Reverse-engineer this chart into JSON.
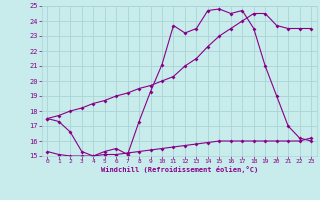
{
  "xlabel": "Windchill (Refroidissement éolien,°C)",
  "bg_color": "#c8ecec",
  "grid_color": "#aad4d4",
  "line_color": "#880088",
  "x_ticks": [
    0,
    1,
    2,
    3,
    4,
    5,
    6,
    7,
    8,
    9,
    10,
    11,
    12,
    13,
    14,
    15,
    16,
    17,
    18,
    19,
    20,
    21,
    22,
    23
  ],
  "y_ticks": [
    15,
    16,
    17,
    18,
    19,
    20,
    21,
    22,
    23,
    24,
    25
  ],
  "xlim": [
    -0.5,
    23.5
  ],
  "ylim": [
    15,
    25
  ],
  "line1_x": [
    0,
    1,
    2,
    3,
    4,
    5,
    6,
    7,
    8,
    9,
    10,
    11,
    12,
    13,
    14,
    15,
    16,
    17,
    18,
    19,
    20,
    21,
    22,
    23
  ],
  "line1_y": [
    17.5,
    17.3,
    16.6,
    15.3,
    15.0,
    15.3,
    15.5,
    15.1,
    17.3,
    19.3,
    21.1,
    23.7,
    23.2,
    23.5,
    24.7,
    24.8,
    24.5,
    24.7,
    23.5,
    21.0,
    19.0,
    17.0,
    16.2,
    16.0
  ],
  "line2_x": [
    0,
    1,
    2,
    3,
    4,
    5,
    6,
    7,
    8,
    9,
    10,
    11,
    12,
    13,
    14,
    15,
    16,
    17,
    18,
    19,
    20,
    21,
    22,
    23
  ],
  "line2_y": [
    17.5,
    17.7,
    18.0,
    18.2,
    18.5,
    18.7,
    19.0,
    19.2,
    19.5,
    19.7,
    20.0,
    20.3,
    21.0,
    21.5,
    22.3,
    23.0,
    23.5,
    24.0,
    24.5,
    24.5,
    23.7,
    23.5,
    23.5,
    23.5
  ],
  "line3_x": [
    0,
    1,
    2,
    3,
    4,
    5,
    6,
    7,
    8,
    9,
    10,
    11,
    12,
    13,
    14,
    15,
    16,
    17,
    18,
    19,
    20,
    21,
    22,
    23
  ],
  "line3_y": [
    15.3,
    15.1,
    15.0,
    15.0,
    15.0,
    15.1,
    15.1,
    15.2,
    15.3,
    15.4,
    15.5,
    15.6,
    15.7,
    15.8,
    15.9,
    16.0,
    16.0,
    16.0,
    16.0,
    16.0,
    16.0,
    16.0,
    16.0,
    16.2
  ],
  "lw": 0.8,
  "ms": 2.0
}
